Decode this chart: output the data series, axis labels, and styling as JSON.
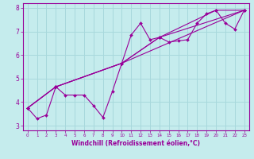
{
  "title": "",
  "xlabel": "Windchill (Refroidissement éolien,°C)",
  "ylabel": "",
  "xlim": [
    -0.5,
    23.5
  ],
  "ylim": [
    2.8,
    8.2
  ],
  "xticks": [
    0,
    1,
    2,
    3,
    4,
    5,
    6,
    7,
    8,
    9,
    10,
    11,
    12,
    13,
    14,
    15,
    16,
    17,
    18,
    19,
    20,
    21,
    22,
    23
  ],
  "yticks": [
    3,
    4,
    5,
    6,
    7,
    8
  ],
  "background_color": "#c5eced",
  "grid_color": "#a8d8dc",
  "line_color": "#990099",
  "series": [
    {
      "x": [
        0,
        1,
        2,
        3,
        4,
        5,
        6,
        7,
        8,
        9,
        10,
        11,
        12,
        13,
        14,
        15,
        16,
        17,
        18,
        19,
        20,
        21,
        22,
        23
      ],
      "y": [
        3.75,
        3.3,
        3.45,
        4.65,
        4.3,
        4.3,
        4.3,
        3.85,
        3.35,
        4.45,
        5.65,
        6.85,
        7.35,
        6.65,
        6.75,
        6.55,
        6.6,
        6.65,
        7.35,
        7.75,
        7.9,
        7.35,
        7.1,
        7.9
      ]
    },
    {
      "x": [
        0,
        3,
        10,
        14,
        20,
        23
      ],
      "y": [
        3.75,
        4.65,
        5.65,
        6.75,
        7.9,
        7.9
      ]
    },
    {
      "x": [
        0,
        3,
        10,
        23
      ],
      "y": [
        3.75,
        4.65,
        5.65,
        7.9
      ]
    },
    {
      "x": [
        0,
        3,
        10,
        14,
        23
      ],
      "y": [
        3.75,
        4.65,
        5.65,
        6.75,
        7.9
      ]
    }
  ]
}
